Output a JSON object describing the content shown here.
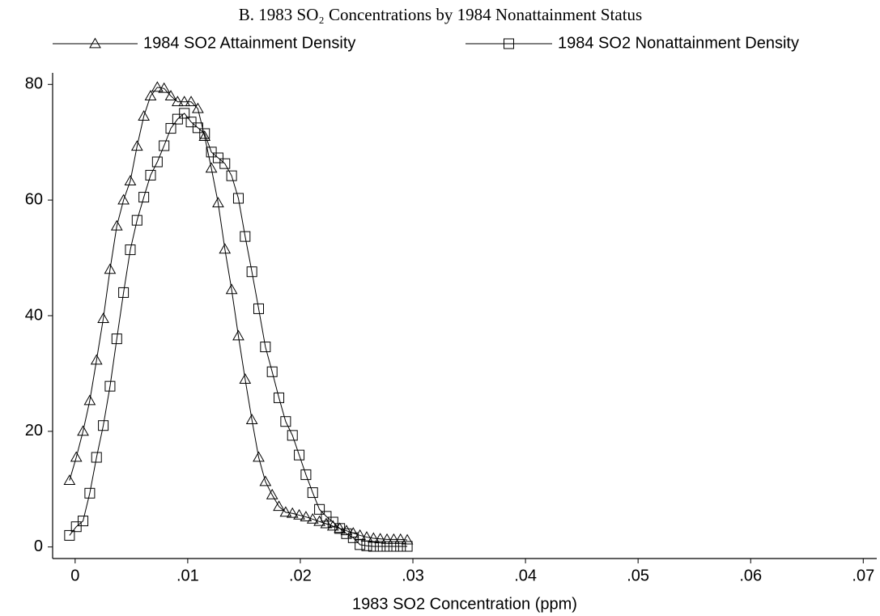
{
  "chart_data": {
    "type": "line",
    "title": "B. 1983 SO₂ Concentrations by 1984 Nonattainment Status",
    "x_label": "1983 SO2 Concentration (ppm)",
    "x": [
      -0.0005,
      0.0001,
      0.0007,
      0.0013,
      0.0019,
      0.0025,
      0.0031,
      0.0037,
      0.0043,
      0.0049,
      0.0055,
      0.0061,
      0.0067,
      0.0073,
      0.0079,
      0.0085,
      0.0091,
      0.0097,
      0.0103,
      0.0109,
      0.0115,
      0.0121,
      0.0127,
      0.0133,
      0.0139,
      0.0145,
      0.0151,
      0.0157,
      0.0163,
      0.0169,
      0.0175,
      0.0181,
      0.0187,
      0.0193,
      0.0199,
      0.0205,
      0.0211,
      0.0217,
      0.0223,
      0.0229,
      0.0235,
      0.0241,
      0.0247,
      0.0253,
      0.0259,
      0.0265,
      0.0271,
      0.0277,
      0.0283,
      0.0289,
      0.0295
    ],
    "series": [
      {
        "name": "1984 SO2 Attainment Density",
        "color": "#000000",
        "marker": "triangle",
        "values": [
          11.5,
          15.5,
          20,
          25.3,
          32.3,
          39.5,
          48,
          55.5,
          60,
          63.3,
          69.3,
          74.5,
          78,
          79.5,
          79.3,
          78,
          77,
          77,
          77,
          75.8,
          71,
          65.5,
          59.5,
          51.5,
          44.5,
          36.5,
          29,
          22,
          15.5,
          11.3,
          9,
          7,
          6,
          5.8,
          5.5,
          5.2,
          4.8,
          4.4,
          4,
          3.6,
          3.2,
          2.8,
          2.4,
          2,
          1.7,
          1.5,
          1.4,
          1.3,
          1.3,
          1.3,
          1.2
        ]
      },
      {
        "name": "1984 SO2 Nonattainment Density",
        "color": "#000000",
        "marker": "square",
        "values": [
          2,
          3.5,
          4.5,
          9.3,
          15.5,
          21,
          27.8,
          36,
          44,
          51.4,
          56.5,
          60.5,
          64.3,
          66.6,
          69.4,
          72.4,
          74,
          75,
          73.5,
          72.5,
          71.5,
          68.3,
          67.3,
          66.3,
          64.2,
          60.3,
          53.7,
          47.6,
          41.2,
          34.6,
          30.3,
          25.8,
          21.7,
          19.3,
          15.9,
          12.5,
          9.4,
          6.5,
          5.3,
          4.3,
          3.2,
          2.3,
          1.6,
          0.4,
          0.2,
          0.1,
          0.1,
          0.1,
          0.1,
          0.1,
          0.1
        ]
      }
    ],
    "xlim": [
      -0.002,
      0.0712
    ],
    "ylim": [
      -2,
      82
    ],
    "xticks": [
      0,
      {
        "value": 0.01,
        "label": ".01"
      },
      {
        "value": 0.02,
        "label": ".02"
      },
      {
        "value": 0.03,
        "label": ".03"
      },
      {
        "value": 0.04,
        "label": ".04"
      },
      {
        "value": 0.05,
        "label": ".05"
      },
      {
        "value": 0.06,
        "label": ".06"
      },
      {
        "value": 0.07,
        "label": ".07"
      }
    ],
    "yticks": [
      0,
      20,
      40,
      60,
      80
    ],
    "legend": "top"
  }
}
